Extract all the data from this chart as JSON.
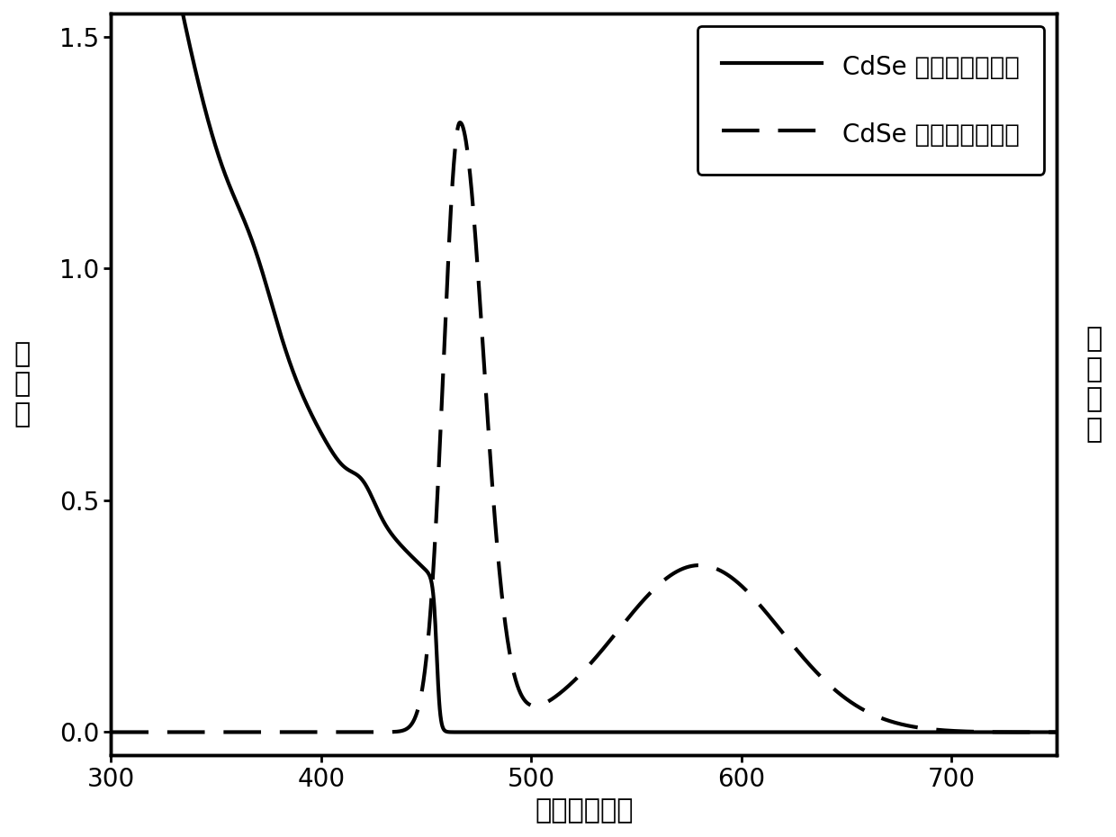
{
  "xlabel": "波长（纳米）",
  "ylabel_left": "吸\n光\n度",
  "ylabel_right": "荧\n光\n强\n度",
  "xlim": [
    300,
    750
  ],
  "ylim_left": [
    -0.05,
    1.55
  ],
  "ylim_right": [
    -0.05,
    1.55
  ],
  "legend_solid": "CdSe 量子点吸收光谱",
  "legend_dashed": "CdSe 量子点发光光谱",
  "line_color": "#000000",
  "bg_color": "#ffffff",
  "fontsize_label": 22,
  "fontsize_tick": 20,
  "fontsize_legend": 20,
  "linewidth": 3.0
}
